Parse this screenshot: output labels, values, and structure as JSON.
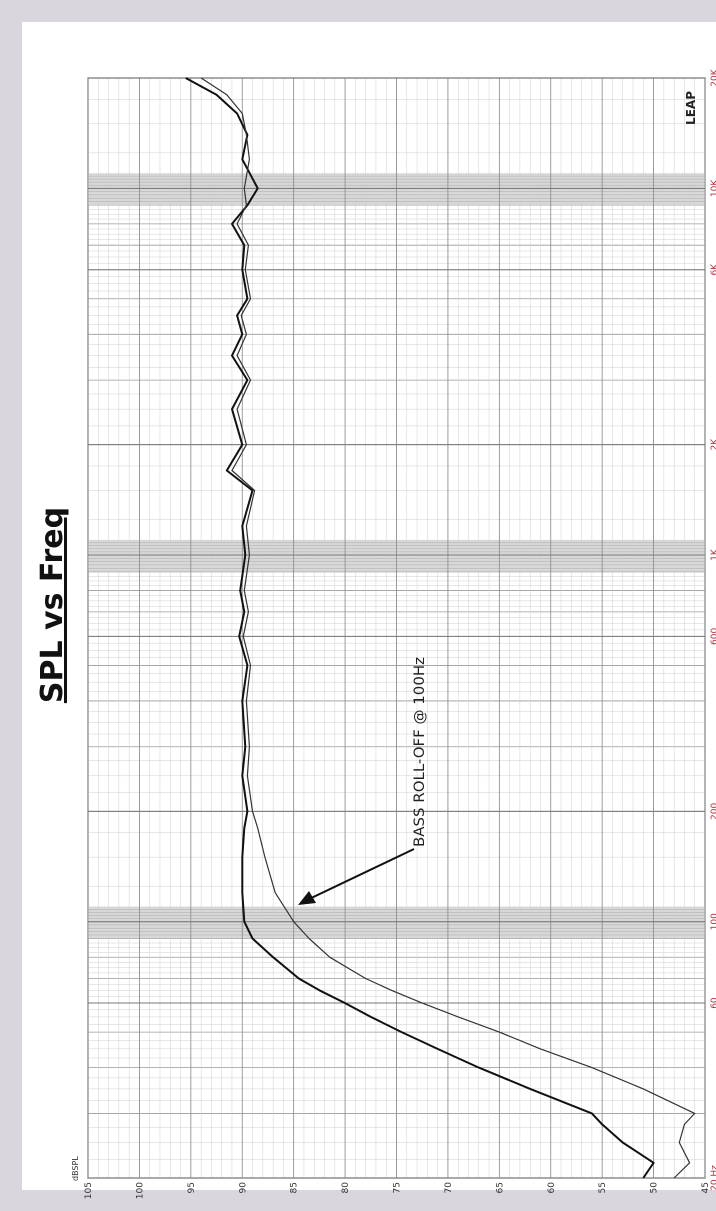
{
  "chart_data": {
    "type": "line",
    "title": "SPL vs Freq",
    "y_unit_label": "dBSPL",
    "logo": "LEAP",
    "annotation": "BASS ROLL-OFF @ 100Hz",
    "x_scale": "log",
    "grid": true,
    "xlim": [
      20,
      20000
    ],
    "xticks": [
      {
        "value": 20,
        "label": "20 Hz"
      },
      60,
      100,
      200,
      600,
      {
        "value": 1000,
        "label": "1K"
      },
      {
        "value": 2000,
        "label": "2K"
      },
      {
        "value": 6000,
        "label": "6K"
      },
      {
        "value": 10000,
        "label": "10K"
      },
      {
        "value": 20000,
        "label": "20K"
      }
    ],
    "ylim": [
      45,
      105
    ],
    "yticks": [
      45,
      50,
      55,
      60,
      65,
      70,
      75,
      80,
      85,
      90,
      95,
      100,
      105
    ],
    "x": [
      20,
      22,
      25,
      28,
      30,
      35,
      40,
      45,
      50,
      55,
      60,
      65,
      70,
      80,
      90,
      100,
      120,
      150,
      180,
      200,
      250,
      300,
      400,
      500,
      600,
      700,
      800,
      1000,
      1200,
      1500,
      1700,
      2000,
      2500,
      3000,
      3500,
      4000,
      4500,
      5000,
      6000,
      7000,
      8000,
      9000,
      10000,
      12000,
      14000,
      16000,
      18000,
      20000
    ],
    "series": [
      {
        "color": "#111111",
        "width": 2,
        "values": [
          51,
          50,
          53,
          55,
          56,
          62,
          67,
          71,
          74.5,
          77.5,
          80,
          82.5,
          84.5,
          87,
          89,
          89.8,
          90,
          90,
          89.8,
          89.5,
          90,
          89.7,
          90,
          89.5,
          90.3,
          89.8,
          90.2,
          89.7,
          90,
          89,
          91.5,
          90,
          91,
          89.5,
          91,
          90,
          90.5,
          89.5,
          90,
          89.8,
          91,
          89.5,
          88.5,
          90,
          89.5,
          90.5,
          92.5,
          95.5
        ]
      },
      {
        "color": "#333333",
        "width": 1.2,
        "values": [
          48,
          46.5,
          47.5,
          47,
          46,
          51,
          56,
          61,
          65,
          69,
          72.5,
          75.5,
          78,
          81.5,
          83.5,
          85,
          86.8,
          87.8,
          88.5,
          89,
          89.5,
          89.3,
          89.6,
          89.2,
          89.9,
          89.4,
          89.8,
          89.3,
          89.6,
          88.8,
          91,
          89.6,
          90.5,
          89.2,
          90.5,
          89.6,
          90.1,
          89.2,
          89.7,
          89.4,
          90.5,
          89.6,
          89.8,
          89.3,
          89.6,
          90,
          91.5,
          94
        ]
      }
    ]
  }
}
